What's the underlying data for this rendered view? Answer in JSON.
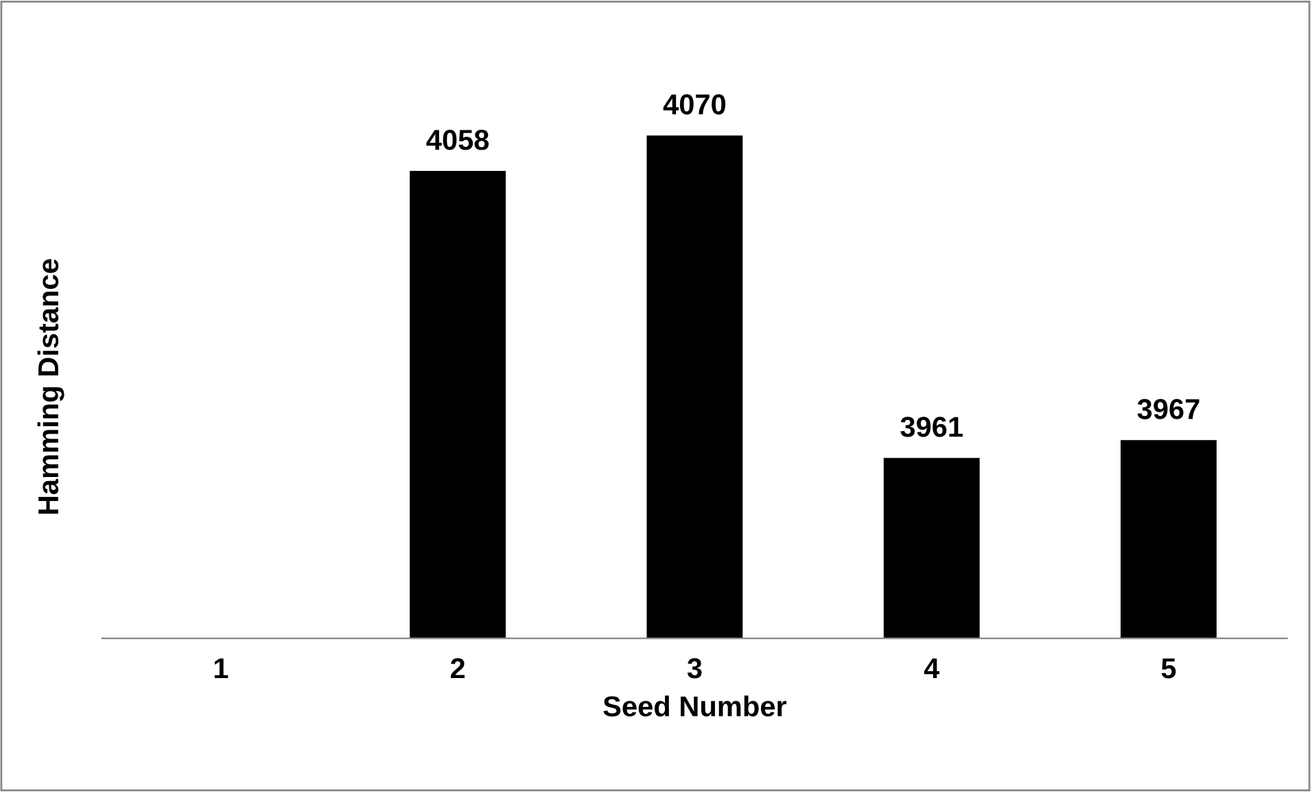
{
  "chart_data": {
    "type": "bar",
    "xlabel": "Seed Number",
    "ylabel": "Hamming Distance",
    "categories": [
      "1",
      "2",
      "3",
      "4",
      "5"
    ],
    "values": [
      null,
      4058,
      4070,
      3961,
      3967
    ],
    "value_labels": [
      null,
      "4058",
      "4070",
      "3961",
      "3967"
    ],
    "color": "#000000",
    "ylim": [
      3900,
      4070
    ],
    "tick_labels": "x",
    "grid": false,
    "legend": false
  }
}
